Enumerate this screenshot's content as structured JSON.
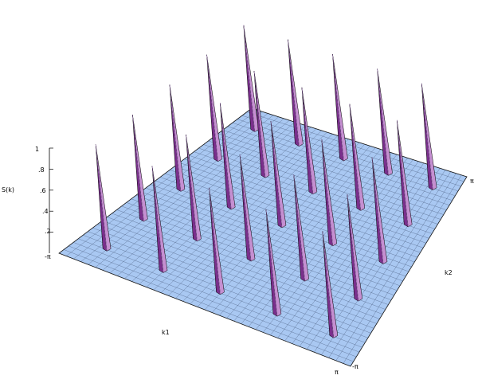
{
  "chart_data": {
    "type": "surface3d",
    "x_axis_label": "k1",
    "y_axis_label": "k2",
    "z_axis_label": "S(k)",
    "x_ticks": [
      "-π",
      "π"
    ],
    "y_ticks": [
      "-π",
      "π"
    ],
    "z_ticks": [
      "1",
      ".8",
      ".6",
      ".4",
      ".2"
    ],
    "z_range": [
      0,
      1
    ],
    "surface_color": "#a9c8f2",
    "mesh_color": "#3a4a6a",
    "peak_colors": [
      "#7a2f8c",
      "#c58fd1",
      "#9b70b7"
    ],
    "peaks": {
      "grid_k1": [
        -2.51,
        -1.26,
        0.0,
        1.26,
        2.51
      ],
      "grid_k2": [
        -2.51,
        -1.26,
        0.0,
        1.26,
        2.51
      ],
      "height": 1.0
    }
  }
}
